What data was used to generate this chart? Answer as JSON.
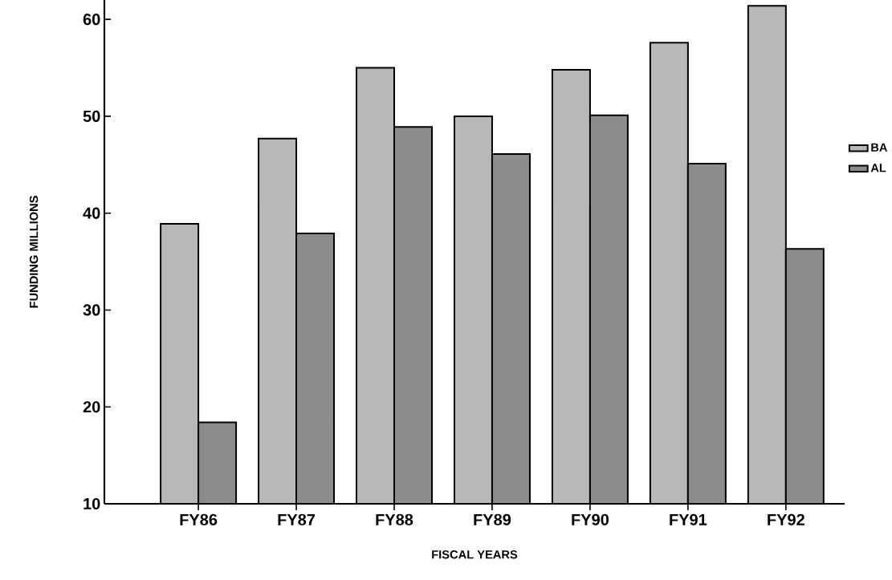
{
  "chart_data": {
    "type": "bar",
    "xlabel": "FISCAL YEARS",
    "ylabel": "FUNDING MILLIONS",
    "categories": [
      "FY86",
      "FY87",
      "FY88",
      "FY89",
      "FY90",
      "FY91",
      "FY92"
    ],
    "series": [
      {
        "name": "BA",
        "color": "#b8b8b8",
        "values": [
          38.9,
          47.7,
          55.0,
          50.0,
          54.8,
          57.6,
          61.4
        ]
      },
      {
        "name": "AL",
        "color": "#8c8c8c",
        "values": [
          18.4,
          37.9,
          48.9,
          46.1,
          50.1,
          45.1,
          36.3
        ]
      }
    ],
    "ylim": [
      10,
      62
    ],
    "yticks": [
      10,
      20,
      30,
      40,
      50,
      60
    ],
    "grid": false,
    "legend": "right"
  }
}
